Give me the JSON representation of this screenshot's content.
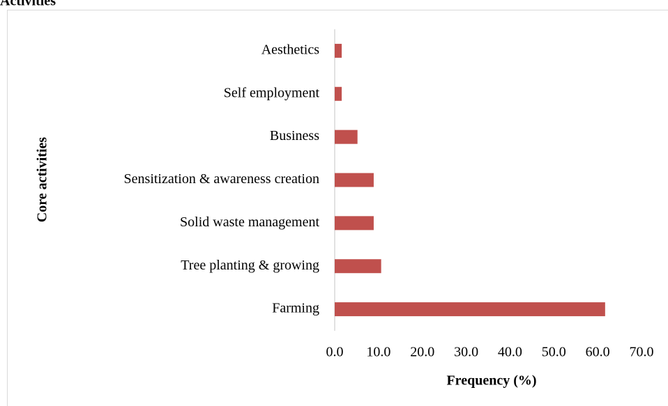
{
  "chart_data": {
    "type": "bar",
    "orientation": "horizontal",
    "title": "Activities",
    "x_label": "Frequency (%)",
    "y_label": "Core activities",
    "categories": [
      "Aesthetics",
      "Self employment",
      "Business",
      "Sensitization & awareness creation",
      "Solid waste management",
      "Tree planting & growing",
      "Farming"
    ],
    "values": [
      1.6,
      1.6,
      5.2,
      8.9,
      8.9,
      10.6,
      61.7
    ],
    "color": "#c0504d",
    "xlim": [
      0,
      70
    ],
    "xticks": [
      {
        "value": 0,
        "label": "0.0"
      },
      {
        "value": 10,
        "label": "10.0"
      },
      {
        "value": 20,
        "label": "20.0"
      },
      {
        "value": 30,
        "label": "30.0"
      },
      {
        "value": 40,
        "label": "40.0"
      },
      {
        "value": 50,
        "label": "50.0"
      },
      {
        "value": 60,
        "label": "60.0"
      },
      {
        "value": 70,
        "label": "70.0"
      }
    ],
    "grid": false
  }
}
